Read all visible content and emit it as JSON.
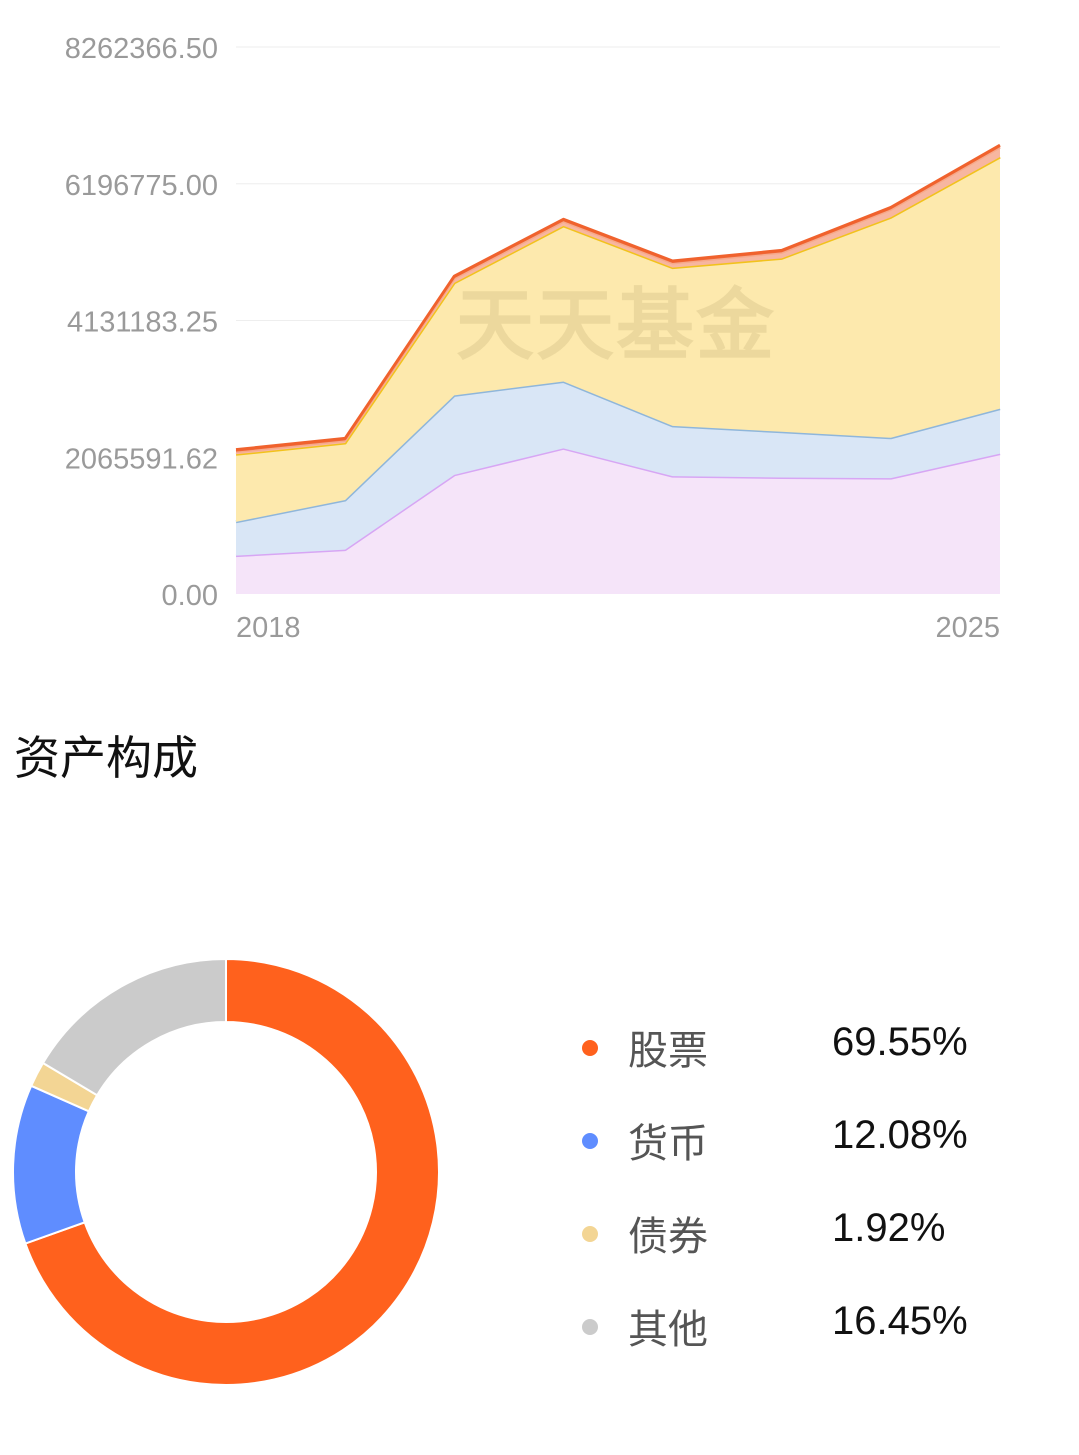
{
  "chart_data": [
    {
      "type": "area",
      "stacked": true,
      "x": [
        "2018",
        "",
        "",
        "",
        "",
        "",
        "",
        "2025"
      ],
      "x_tick_labels": [
        "2018",
        "2025"
      ],
      "y_tick_labels": [
        "8262366.50",
        "6196775.00",
        "4131183.25",
        "2065591.62",
        "0.00"
      ],
      "ylim": [
        0,
        8262366.5
      ],
      "grid": true,
      "watermark": "天天基金",
      "series": [
        {
          "color": "#d7a6f4",
          "fill": "#f5e4f9",
          "values": [
            580000,
            670000,
            1800000,
            2200000,
            1780000,
            1760000,
            1750000,
            2120000
          ]
        },
        {
          "color": "#8fb6da",
          "fill": "#d9e6f6",
          "values": [
            510000,
            750000,
            1200000,
            1010000,
            760000,
            690000,
            610000,
            680000
          ]
        },
        {
          "color": "#f2c21c",
          "fill": "#fde9ad",
          "values": [
            1020000,
            860000,
            1700000,
            2350000,
            2390000,
            2620000,
            3330000,
            3800000
          ]
        },
        {
          "color": "#f7a98a",
          "fill": "#f7b6a0",
          "values": [
            40000,
            40000,
            70000,
            70000,
            70000,
            90000,
            120000,
            150000
          ]
        },
        {
          "color": "#f0622d",
          "fill": "#ee6a3e",
          "values": [
            30000,
            30000,
            30000,
            30000,
            30000,
            30000,
            30000,
            30000
          ]
        }
      ]
    },
    {
      "type": "pie",
      "donut": true,
      "title": "资产构成",
      "slices": [
        {
          "name": "股票",
          "value": 69.55,
          "label": "69.55%",
          "color": "#ff611d"
        },
        {
          "name": "货币",
          "value": 12.08,
          "label": "12.08%",
          "color": "#5f8dff"
        },
        {
          "name": "债券",
          "value": 1.92,
          "label": "1.92%",
          "color": "#f3d594"
        },
        {
          "name": "其他",
          "value": 16.45,
          "label": "16.45%",
          "color": "#cbcbcb"
        }
      ]
    }
  ]
}
